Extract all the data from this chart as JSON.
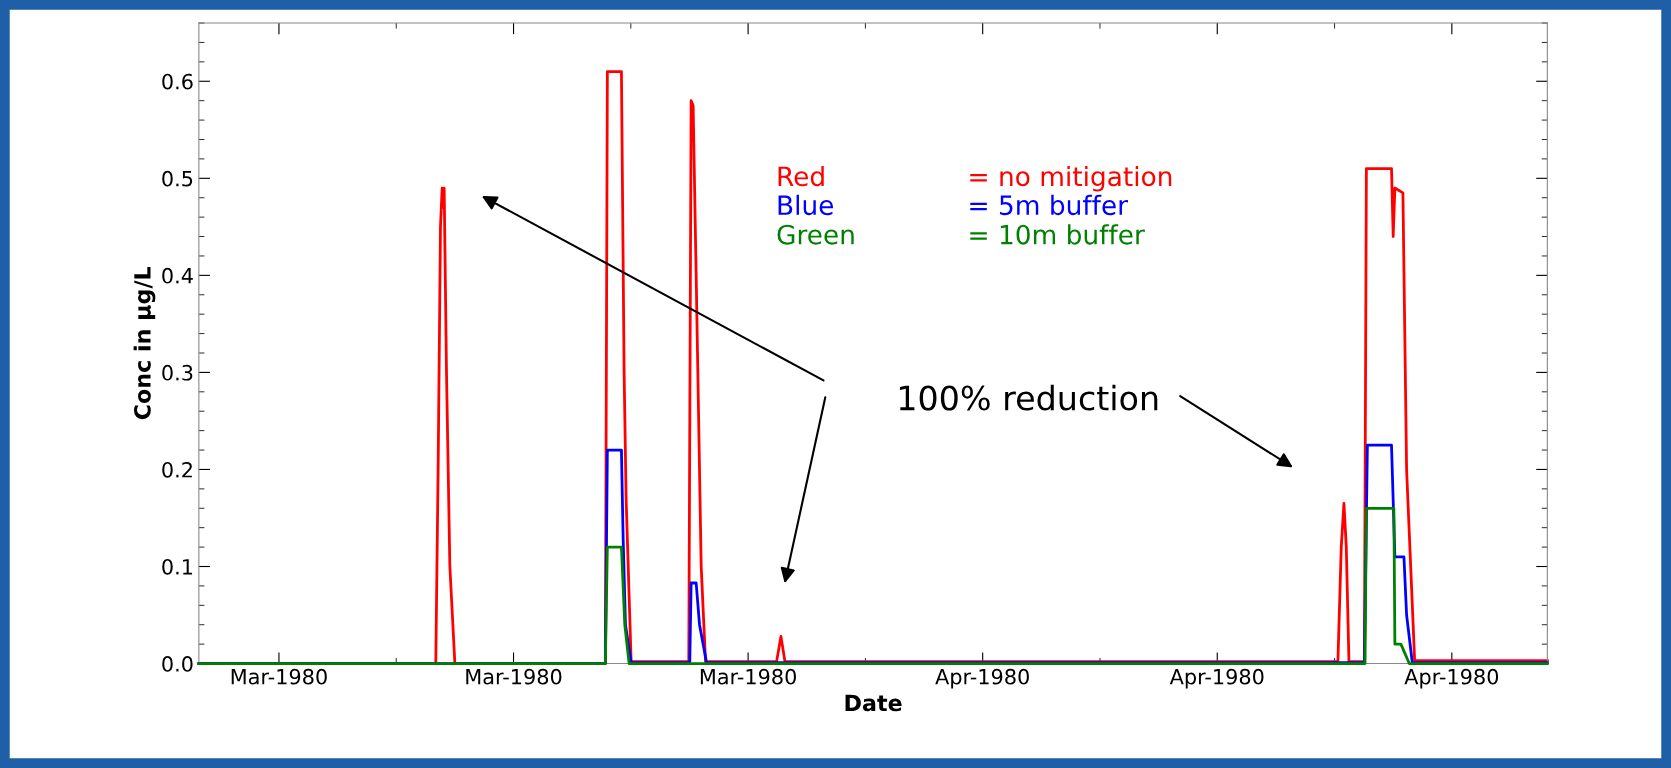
{
  "chart_data": {
    "type": "line",
    "xlabel": "Date",
    "ylabel": "Conc in µg/L",
    "xlim": [
      "1980-03-09T14:38",
      "1980-04-18T20:24"
    ],
    "xticks": [
      {
        "value": "1980-03-12",
        "label": "Mar-1980"
      },
      {
        "value": "1980-03-19",
        "label": "Mar-1980"
      },
      {
        "value": "1980-03-26",
        "label": "Mar-1980"
      },
      {
        "value": "1980-04-02",
        "label": "Apr-1980"
      },
      {
        "value": "1980-04-09",
        "label": "Apr-1980"
      },
      {
        "value": "1980-04-16",
        "label": "Apr-1980"
      }
    ],
    "ylim": [
      0,
      0.66
    ],
    "yticks": [
      {
        "value": 0,
        "label": "0.0"
      },
      0.1,
      0.2,
      0.3,
      0.4,
      0.5,
      0.6
    ],
    "grid": false,
    "legend": false,
    "marker": "none",
    "line_style": "solid",
    "series": [
      {
        "name": "= no mitigation",
        "color": "#ff0000",
        "x": [
          "1980-03-09T14:38",
          "1980-03-16T16:19",
          "1980-03-16T18:00",
          "1980-03-16T19:41",
          "1980-03-16T20:53",
          "1980-03-16T21:36",
          "1980-03-16T22:19",
          "1980-03-17T00:00",
          "1980-03-17T02:24",
          "1980-03-17T06:00",
          "1980-03-21T17:46",
          "1980-03-21T19:12",
          "1980-03-22T05:17",
          "1980-03-22T07:12",
          "1980-03-22T08:38",
          "1980-03-22T12:14",
          "1980-03-24T05:31",
          "1980-03-24T07:12",
          "1980-03-24T08:38",
          "1980-03-24T10:48",
          "1980-03-24T14:24",
          "1980-03-24T17:31",
          "1980-03-26T20:24",
          "1980-03-26T23:31",
          "1980-03-27T02:24",
          "1980-03-27T04:48",
          "1980-04-12T14:24",
          "1980-04-12T16:48",
          "1980-04-12T18:43",
          "1980-04-12T20:24",
          "1980-04-12T22:19",
          "1980-04-13T09:22",
          "1980-04-13T10:48",
          "1980-04-14T04:48",
          "1980-04-14T06:00",
          "1980-04-14T07:12",
          "1980-04-14T12:58",
          "1980-04-14T15:36",
          "1980-04-14T21:22",
          "1980-04-18T20:24"
        ],
        "values": [
          0,
          0,
          0.2,
          0.45,
          0.49,
          0.47,
          0.49,
          0.3,
          0.1,
          0,
          0,
          0.61,
          0.61,
          0.3,
          0.17,
          0.002,
          0.002,
          0.58,
          0.575,
          0.4,
          0.1,
          0.002,
          0.002,
          0.028,
          0.002,
          0.002,
          0.002,
          0.12,
          0.165,
          0.12,
          0.002,
          0.002,
          0.51,
          0.51,
          0.44,
          0.49,
          0.485,
          0.2,
          0.003,
          0.003
        ]
      },
      {
        "name": "= 5m buffer",
        "color": "#0000ff",
        "x": [
          "1980-03-09T14:38",
          "1980-03-21T17:46",
          "1980-03-21T19:12",
          "1980-03-22T05:17",
          "1980-03-22T06:29",
          "1980-03-22T08:10",
          "1980-03-22T12:14",
          "1980-03-24T06:14",
          "1980-03-24T07:12",
          "1980-03-24T10:48",
          "1980-03-24T13:12",
          "1980-03-24T18:14",
          "1980-04-13T09:22",
          "1980-04-13T11:31",
          "1980-04-14T04:48",
          "1980-04-14T07:12",
          "1980-04-14T13:41",
          "1980-04-14T15:36",
          "1980-04-14T19:41",
          "1980-04-18T20:24"
        ],
        "values": [
          0,
          0,
          0.22,
          0.22,
          0.13,
          0.04,
          0.001,
          0.001,
          0.083,
          0.083,
          0.04,
          0.001,
          0.001,
          0.225,
          0.225,
          0.11,
          0.11,
          0.05,
          0.001,
          0.001
        ]
      },
      {
        "name": "= 10m buffer",
        "color": "#008000",
        "x": [
          "1980-03-09T14:38",
          "1980-03-21T17:46",
          "1980-03-21T19:12",
          "1980-03-22T05:17",
          "1980-03-22T07:41",
          "1980-03-22T10:48",
          "1980-04-13T09:50",
          "1980-04-13T10:48",
          "1980-04-14T06:29",
          "1980-04-14T07:12",
          "1980-04-14T11:31",
          "1980-04-14T17:31",
          "1980-04-18T20:24"
        ],
        "values": [
          0,
          0,
          0.12,
          0.12,
          0.04,
          0,
          0,
          0.16,
          0.16,
          0.02,
          0.02,
          0,
          0
        ]
      }
    ],
    "annotations": [
      "Red",
      "Blue",
      "Green",
      "100% reduction"
    ]
  }
}
